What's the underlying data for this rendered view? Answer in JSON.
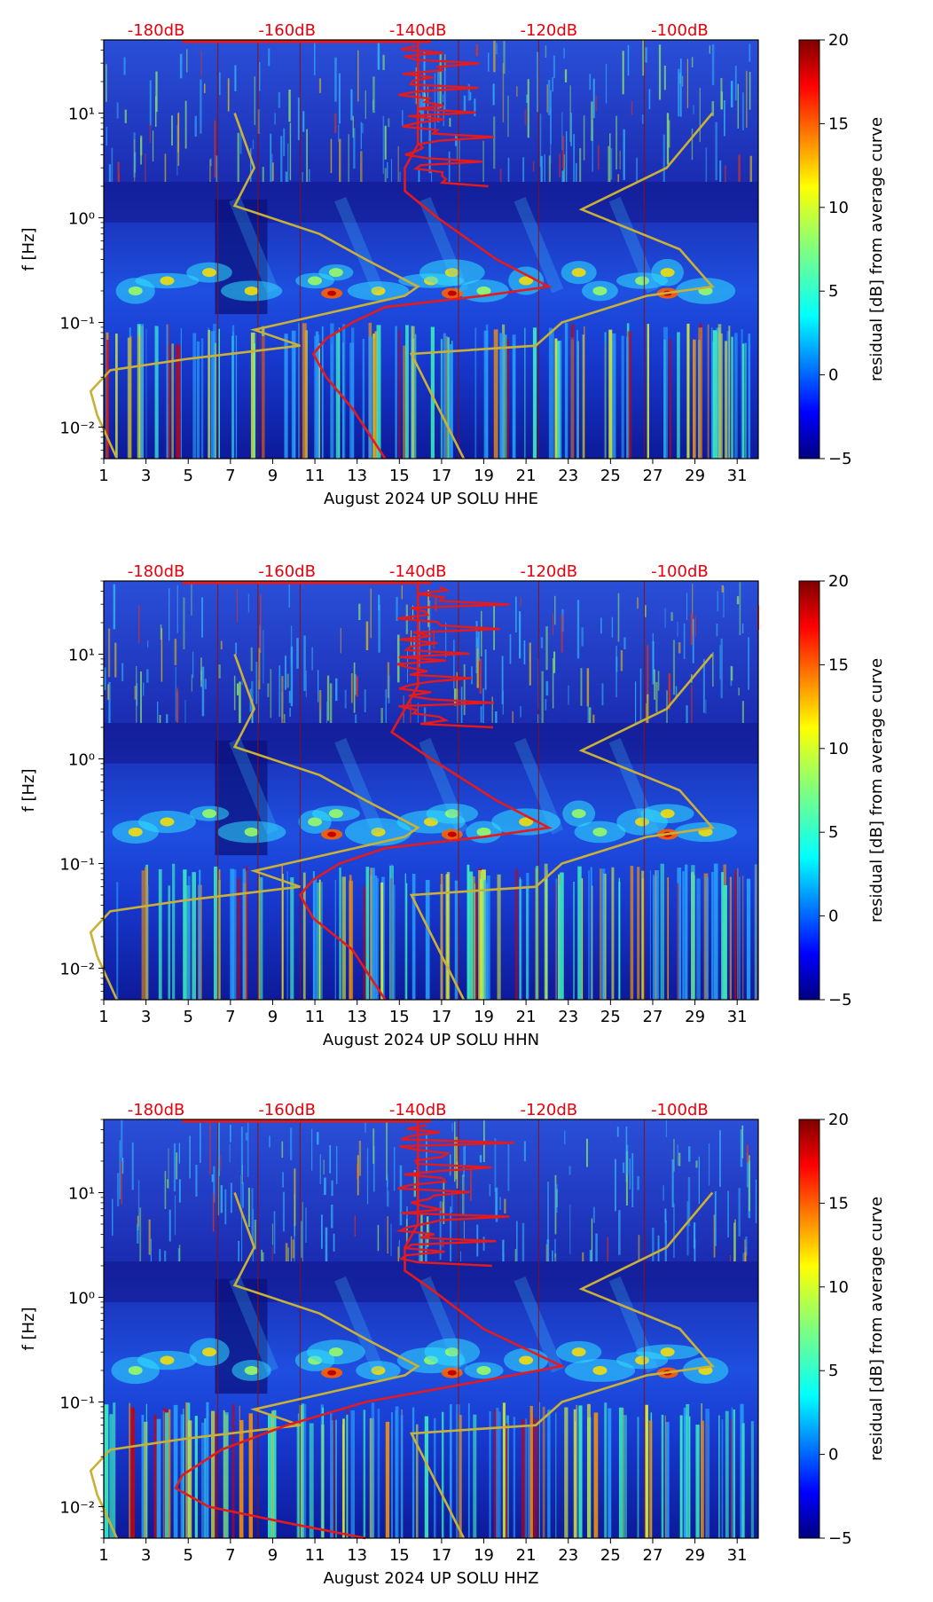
{
  "chart_data": [
    {
      "type": "heatmap",
      "channel": "HHE",
      "xlabel": "August 2024 UP SOLU  HHE",
      "ylabel": "f [Hz]",
      "x_ticks": [
        "1",
        "3",
        "5",
        "7",
        "9",
        "11",
        "13",
        "15",
        "17",
        "19",
        "21",
        "23",
        "25",
        "27",
        "29",
        "31"
      ],
      "y_ticks": [
        "10⁻²",
        "10⁻¹",
        "10⁰",
        "10¹"
      ],
      "top_db_labels": [
        "-180dB",
        "-160dB",
        "-140dB",
        "-120dB",
        "-100dB"
      ],
      "colorbar_label": "residual [dB] from average curve",
      "colorbar_ticks": [
        "20",
        "15",
        "10",
        "5",
        "0",
        "−5"
      ],
      "colorbar_range": [
        -5,
        20
      ],
      "xlim": [
        1,
        32
      ],
      "ylim_hz": [
        0.005,
        50
      ],
      "red_curve_db": [
        [
          -140,
          50
        ],
        [
          -140,
          5
        ],
        [
          -142,
          3
        ],
        [
          -142,
          1.8
        ],
        [
          -137,
          1.0
        ],
        [
          -128,
          0.4
        ],
        [
          -120,
          0.22
        ],
        [
          -130,
          0.18
        ],
        [
          -145,
          0.14
        ],
        [
          -150,
          0.1
        ],
        [
          -154,
          0.07
        ],
        [
          -156,
          0.05
        ],
        [
          -154,
          0.03
        ],
        [
          -150,
          0.015
        ],
        [
          -145,
          0.005
        ]
      ],
      "yellow_curve_left_db": [
        [
          -168,
          10
        ],
        [
          -165,
          3
        ],
        [
          -168,
          1.3
        ],
        [
          -155,
          0.7
        ],
        [
          -148,
          0.4
        ],
        [
          -140,
          0.22
        ],
        [
          -142,
          0.18
        ],
        [
          -160,
          0.1
        ],
        [
          -165,
          0.085
        ],
        [
          -158,
          0.06
        ],
        [
          -175,
          0.045
        ],
        [
          -187,
          0.035
        ],
        [
          -190,
          0.022
        ],
        [
          -189,
          0.013
        ],
        [
          -186,
          0.005
        ]
      ],
      "yellow_curve_right_db": [
        [
          -95,
          10
        ],
        [
          -102,
          3
        ],
        [
          -115,
          1.2
        ],
        [
          -100,
          0.5
        ],
        [
          -95,
          0.22
        ],
        [
          -105,
          0.18
        ],
        [
          -118,
          0.1
        ],
        [
          -122,
          0.06
        ],
        [
          -141,
          0.05
        ],
        [
          -133,
          0.005
        ]
      ]
    },
    {
      "type": "heatmap",
      "channel": "HHN",
      "xlabel": "August 2024 UP SOLU  HHN",
      "ylabel": "f [Hz]",
      "x_ticks": [
        "1",
        "3",
        "5",
        "7",
        "9",
        "11",
        "13",
        "15",
        "17",
        "19",
        "21",
        "23",
        "25",
        "27",
        "29",
        "31"
      ],
      "y_ticks": [
        "10⁻²",
        "10⁻¹",
        "10⁰",
        "10¹"
      ],
      "top_db_labels": [
        "-180dB",
        "-160dB",
        "-140dB",
        "-120dB",
        "-100dB"
      ],
      "colorbar_label": "residual [dB] from average curve",
      "colorbar_ticks": [
        "20",
        "15",
        "10",
        "5",
        "0",
        "−5"
      ],
      "colorbar_range": [
        -5,
        20
      ],
      "xlim": [
        1,
        32
      ],
      "ylim_hz": [
        0.005,
        50
      ],
      "red_curve_db": [
        [
          -140,
          50
        ],
        [
          -140,
          5
        ],
        [
          -142,
          3
        ],
        [
          -144,
          1.8
        ],
        [
          -138,
          1.0
        ],
        [
          -128,
          0.4
        ],
        [
          -120,
          0.22
        ],
        [
          -130,
          0.18
        ],
        [
          -145,
          0.14
        ],
        [
          -152,
          0.1
        ],
        [
          -156,
          0.07
        ],
        [
          -158,
          0.05
        ],
        [
          -156,
          0.03
        ],
        [
          -150,
          0.015
        ],
        [
          -145,
          0.005
        ]
      ],
      "yellow_curve_left_db": [
        [
          -168,
          10
        ],
        [
          -165,
          3
        ],
        [
          -168,
          1.3
        ],
        [
          -155,
          0.7
        ],
        [
          -148,
          0.4
        ],
        [
          -140,
          0.22
        ],
        [
          -142,
          0.18
        ],
        [
          -160,
          0.1
        ],
        [
          -165,
          0.085
        ],
        [
          -158,
          0.06
        ],
        [
          -175,
          0.045
        ],
        [
          -187,
          0.035
        ],
        [
          -190,
          0.022
        ],
        [
          -189,
          0.013
        ],
        [
          -186,
          0.005
        ]
      ],
      "yellow_curve_right_db": [
        [
          -95,
          10
        ],
        [
          -102,
          3
        ],
        [
          -115,
          1.2
        ],
        [
          -100,
          0.5
        ],
        [
          -95,
          0.22
        ],
        [
          -105,
          0.18
        ],
        [
          -118,
          0.1
        ],
        [
          -122,
          0.06
        ],
        [
          -141,
          0.05
        ],
        [
          -133,
          0.005
        ]
      ]
    },
    {
      "type": "heatmap",
      "channel": "HHZ",
      "xlabel": "August 2024 UP SOLU  HHZ",
      "ylabel": "f [Hz]",
      "x_ticks": [
        "1",
        "3",
        "5",
        "7",
        "9",
        "11",
        "13",
        "15",
        "17",
        "19",
        "21",
        "23",
        "25",
        "27",
        "29",
        "31"
      ],
      "y_ticks": [
        "10⁻²",
        "10⁻¹",
        "10⁰",
        "10¹"
      ],
      "top_db_labels": [
        "-180dB",
        "-160dB",
        "-140dB",
        "-120dB",
        "-100dB"
      ],
      "colorbar_label": "residual [dB] from average curve",
      "colorbar_ticks": [
        "20",
        "15",
        "10",
        "5",
        "0",
        "−5"
      ],
      "colorbar_range": [
        -5,
        20
      ],
      "xlim": [
        1,
        32
      ],
      "ylim_hz": [
        0.005,
        50
      ],
      "red_curve_db": [
        [
          -140,
          50
        ],
        [
          -140,
          5
        ],
        [
          -142,
          3
        ],
        [
          -142,
          1.8
        ],
        [
          -138,
          1.2
        ],
        [
          -130,
          0.5
        ],
        [
          -118,
          0.22
        ],
        [
          -130,
          0.16
        ],
        [
          -148,
          0.1
        ],
        [
          -160,
          0.06
        ],
        [
          -170,
          0.035
        ],
        [
          -176,
          0.02
        ],
        [
          -177,
          0.015
        ],
        [
          -172,
          0.01
        ],
        [
          -160,
          0.007
        ],
        [
          -148,
          0.005
        ]
      ],
      "yellow_curve_left_db": [
        [
          -168,
          10
        ],
        [
          -165,
          3
        ],
        [
          -168,
          1.3
        ],
        [
          -155,
          0.7
        ],
        [
          -148,
          0.4
        ],
        [
          -140,
          0.22
        ],
        [
          -142,
          0.18
        ],
        [
          -160,
          0.1
        ],
        [
          -165,
          0.085
        ],
        [
          -158,
          0.06
        ],
        [
          -175,
          0.045
        ],
        [
          -187,
          0.035
        ],
        [
          -190,
          0.022
        ],
        [
          -189,
          0.013
        ],
        [
          -186,
          0.005
        ]
      ],
      "yellow_curve_right_db": [
        [
          -95,
          10
        ],
        [
          -102,
          3
        ],
        [
          -115,
          1.2
        ],
        [
          -100,
          0.5
        ],
        [
          -95,
          0.22
        ],
        [
          -105,
          0.18
        ],
        [
          -118,
          0.1
        ],
        [
          -122,
          0.06
        ],
        [
          -141,
          0.05
        ],
        [
          -133,
          0.005
        ]
      ]
    }
  ],
  "colors": {
    "db_label": "#e8000b",
    "red_curve": "#e41a1c",
    "yellow_curve": "#c9b037",
    "background_band": "#16208c"
  }
}
